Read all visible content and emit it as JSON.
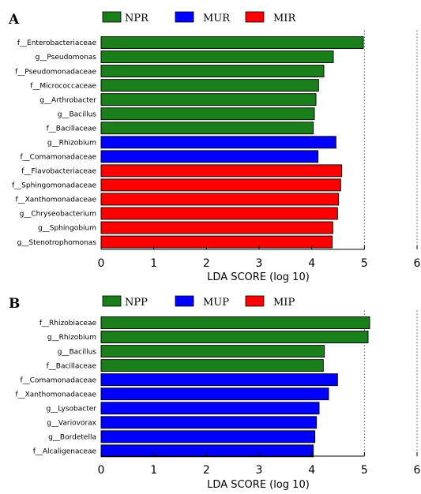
{
  "chart_data": [
    {
      "type": "bar",
      "orientation": "horizontal",
      "panel_label": "A",
      "xlabel": "LDA SCORE (log 10)",
      "xlim": [
        0,
        6
      ],
      "xticks": [
        "0",
        "1",
        "2",
        "3",
        "4",
        "5",
        "6"
      ],
      "grid": "vertical dotted",
      "legend_position": "top",
      "groups": [
        {
          "name": "NPR",
          "color": "#1a7f1a"
        },
        {
          "name": "MUR",
          "color": "#0000ff"
        },
        {
          "name": "MIR",
          "color": "#ff0000"
        }
      ],
      "bars": [
        {
          "label": "f__Enterobacteriaceae",
          "value": 4.98,
          "group": "NPR"
        },
        {
          "label": "g__Pseudomonas",
          "value": 4.41,
          "group": "NPR"
        },
        {
          "label": "f__Pseudomonadaceae",
          "value": 4.23,
          "group": "NPR"
        },
        {
          "label": "f__Micrococcaceae",
          "value": 4.13,
          "group": "NPR"
        },
        {
          "label": "g__Arthrobacter",
          "value": 4.08,
          "group": "NPR"
        },
        {
          "label": "g__Bacillus",
          "value": 4.05,
          "group": "NPR"
        },
        {
          "label": "f__Bacillaceae",
          "value": 4.03,
          "group": "NPR"
        },
        {
          "label": "g__Rhizobium",
          "value": 4.46,
          "group": "MUR"
        },
        {
          "label": "f__Comamonadaceae",
          "value": 4.12,
          "group": "MUR"
        },
        {
          "label": "f__Flavobacteriaceae",
          "value": 4.57,
          "group": "MIR"
        },
        {
          "label": "f__Sphingomonadaceae",
          "value": 4.55,
          "group": "MIR"
        },
        {
          "label": "f__Xanthomonadaceae",
          "value": 4.51,
          "group": "MIR"
        },
        {
          "label": "g__Chryseobacterium",
          "value": 4.49,
          "group": "MIR"
        },
        {
          "label": "g__Sphingobium",
          "value": 4.4,
          "group": "MIR"
        },
        {
          "label": "g__Stenotrophomonas",
          "value": 4.39,
          "group": "MIR"
        }
      ]
    },
    {
      "type": "bar",
      "orientation": "horizontal",
      "panel_label": "B",
      "xlabel": "LDA SCORE (log 10)",
      "xlim": [
        0,
        6
      ],
      "xticks": [
        "0",
        "1",
        "2",
        "3",
        "4",
        "5",
        "6"
      ],
      "grid": "vertical dotted",
      "legend_position": "top",
      "groups": [
        {
          "name": "NPP",
          "color": "#1a7f1a"
        },
        {
          "name": "MUP",
          "color": "#0000ff"
        },
        {
          "name": "MIP",
          "color": "#ff0000"
        }
      ],
      "bars": [
        {
          "label": "f__Rhizobiaceae",
          "value": 5.1,
          "group": "NPP"
        },
        {
          "label": "g__Rhizobium",
          "value": 5.07,
          "group": "NPP"
        },
        {
          "label": "g__Bacillus",
          "value": 4.24,
          "group": "NPP"
        },
        {
          "label": "f__Bacillaceae",
          "value": 4.22,
          "group": "NPP"
        },
        {
          "label": "f__Comamonadaceae",
          "value": 4.49,
          "group": "MUP"
        },
        {
          "label": "f__Xanthomonadaceae",
          "value": 4.32,
          "group": "MUP"
        },
        {
          "label": "g__Lysobacter",
          "value": 4.14,
          "group": "MUP"
        },
        {
          "label": "g__Variovorax",
          "value": 4.09,
          "group": "MUP"
        },
        {
          "label": "g__Bordetella",
          "value": 4.06,
          "group": "MUP"
        },
        {
          "label": "f__Alcaligenaceae",
          "value": 4.03,
          "group": "MUP"
        }
      ]
    }
  ]
}
